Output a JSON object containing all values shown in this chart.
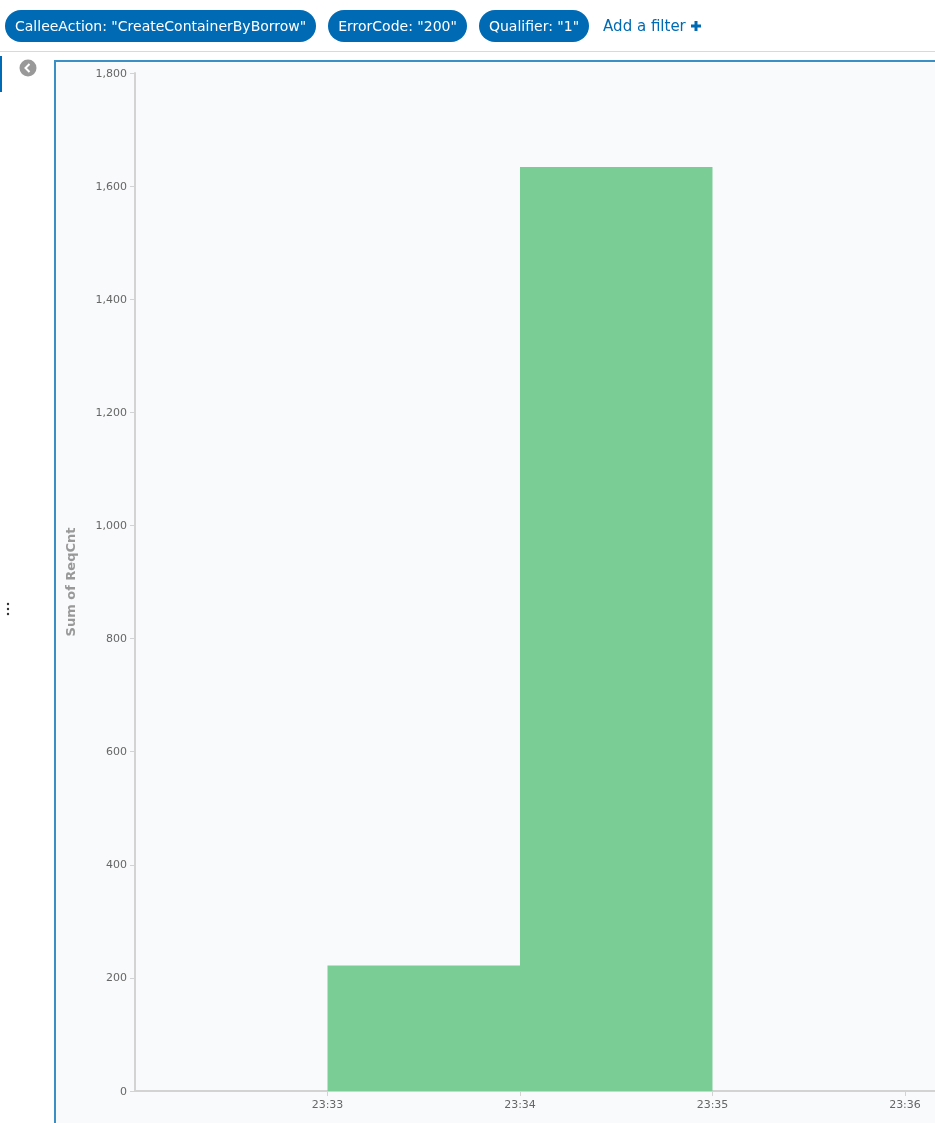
{
  "chart_data": {
    "type": "histogram",
    "ylabel": "Sum of ReqCnt",
    "annotations": [
      "CalleeAction: \"CreateContainerByBorrow\"",
      "ErrorCode: \"200\"",
      "Qualifier: \"1\"",
      "Add a filter"
    ],
    "bins": [
      23.55,
      23.566667,
      23.583333
    ],
    "values": [
      222,
      1634
    ],
    "color": "#7bcd96",
    "xlim": [
      23.533333,
      23.6026
    ],
    "xticks": [
      {
        "value": 23.55,
        "label": "23:33"
      },
      {
        "value": 23.566667,
        "label": "23:34"
      },
      {
        "value": 23.583333,
        "label": "23:35"
      },
      {
        "value": 23.6,
        "label": "23:36"
      }
    ],
    "ylim": [
      0,
      1800
    ],
    "yticks": [
      0,
      200,
      400,
      600,
      800,
      {
        "value": 1000,
        "label": "1,000"
      },
      {
        "value": 1200,
        "label": "1,200"
      },
      {
        "value": 1400,
        "label": "1,400"
      },
      {
        "value": 1600,
        "label": "1,600"
      },
      {
        "value": 1800,
        "label": "1,800"
      }
    ],
    "grid": false
  }
}
